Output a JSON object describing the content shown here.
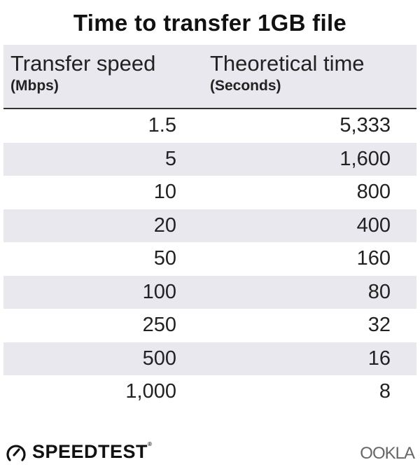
{
  "title": "Time to transfer 1GB file",
  "chart_data": {
    "type": "table",
    "title": "Time to transfer 1GB file",
    "columns": [
      {
        "label": "Transfer speed",
        "unit": "(Mbps)"
      },
      {
        "label": "Theoretical time",
        "unit": "(Seconds)"
      }
    ],
    "rows": [
      [
        "1.5",
        "5,333"
      ],
      [
        "5",
        "1,600"
      ],
      [
        "10",
        "800"
      ],
      [
        "20",
        "400"
      ],
      [
        "50",
        "160"
      ],
      [
        "100",
        "80"
      ],
      [
        "250",
        "32"
      ],
      [
        "500",
        "16"
      ],
      [
        "1,000",
        "8"
      ]
    ]
  },
  "colors": {
    "row_shade": "#e8e8ee",
    "text": "#222222"
  },
  "footer": {
    "speedtest_logo": "SPEEDTEST",
    "ookla_logo": "OOKLA"
  }
}
